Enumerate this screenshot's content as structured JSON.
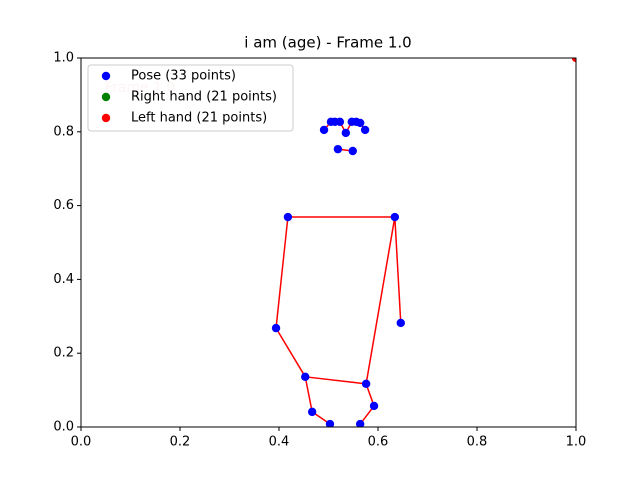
{
  "chart_data": {
    "type": "scatter",
    "title": "i am (age) - Frame 1.0",
    "annotation": "Frame 1.0",
    "xlim": [
      0,
      1
    ],
    "ylim": [
      0,
      1
    ],
    "xticks": [
      {
        "value": 0,
        "label": "0.0"
      },
      0.2,
      0.4,
      0.6,
      0.8,
      {
        "value": 1,
        "label": "1.0"
      }
    ],
    "yticks": [
      {
        "value": 0,
        "label": "0.0"
      },
      0.2,
      0.4,
      0.6,
      0.8,
      {
        "value": 1,
        "label": "1.0"
      }
    ],
    "legend": "upper left",
    "line_color": "#ff0000",
    "connections": [
      [
        4,
        3
      ],
      [
        3,
        2
      ],
      [
        2,
        1
      ],
      [
        1,
        0
      ],
      [
        4,
        5
      ],
      [
        5,
        6
      ],
      [
        6,
        7
      ],
      [
        7,
        8
      ],
      [
        9,
        10
      ],
      [
        11,
        12
      ],
      [
        11,
        13
      ],
      [
        13,
        15
      ],
      [
        12,
        14
      ],
      [
        12,
        16
      ],
      [
        15,
        16
      ],
      [
        15,
        17
      ],
      [
        16,
        18
      ],
      [
        17,
        19
      ],
      [
        18,
        20
      ]
    ],
    "series": [
      {
        "name": "Pose (33 points)",
        "color": "#0000ff",
        "x": [
          0.491,
          0.505,
          0.513,
          0.523,
          0.535,
          0.547,
          0.556,
          0.564,
          0.574,
          0.519,
          0.549,
          0.418,
          0.634,
          0.394,
          0.646,
          0.453,
          0.576,
          0.467,
          0.592,
          0.503,
          0.564
        ],
        "values": [
          0.805,
          0.827,
          0.827,
          0.827,
          0.797,
          0.827,
          0.827,
          0.824,
          0.805,
          0.753,
          0.748,
          0.569,
          0.569,
          0.268,
          0.282,
          0.136,
          0.117,
          0.041,
          0.057,
          0.008,
          0.008
        ]
      },
      {
        "name": "Right hand (21 points)",
        "color": "#008000",
        "x": [],
        "values": []
      },
      {
        "name": "Left hand (21 points)",
        "color": "#ff0000",
        "x": [
          1.0
        ],
        "values": [
          1.0
        ]
      }
    ]
  }
}
